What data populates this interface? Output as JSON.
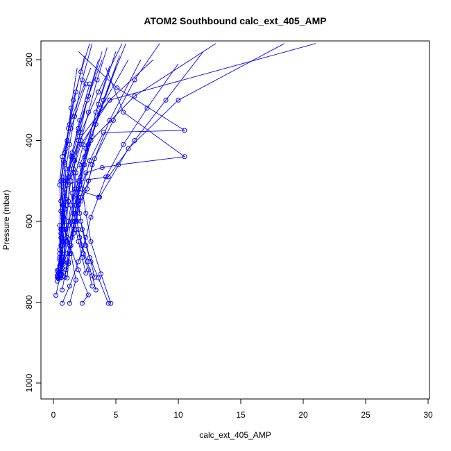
{
  "chart_data": {
    "type": "scatter",
    "title": "ATOM2 Southbound calc_ext_405_AMP",
    "xlabel": "calc_ext_405_AMP",
    "ylabel": "Pressure (mbar)",
    "xlim": [
      0,
      30
    ],
    "ylim": [
      1000,
      200
    ],
    "y_axis_inverted": true,
    "x_ticks": [
      0,
      5,
      10,
      15,
      20,
      25,
      30
    ],
    "y_ticks": [
      200,
      400,
      600,
      800,
      1000
    ],
    "grid": false,
    "legend": "none",
    "point_style": "open-circle",
    "color": "#0000ff",
    "series": [
      {
        "points": [
          [
            0.3,
            738
          ],
          [
            0.5,
            725
          ],
          [
            0.8,
            690
          ],
          [
            1.2,
            610
          ],
          [
            1.8,
            520
          ],
          [
            2.5,
            440
          ],
          [
            3.4,
            330
          ],
          [
            4.5,
            215
          ]
        ]
      },
      {
        "points": [
          [
            0.4,
            742
          ],
          [
            0.6,
            712
          ],
          [
            0.7,
            640
          ],
          [
            0.9,
            570
          ],
          [
            1.1,
            500
          ],
          [
            1.5,
            430
          ],
          [
            2.1,
            350
          ],
          [
            2.9,
            260
          ]
        ]
      },
      {
        "points": [
          [
            0.2,
            783
          ],
          [
            0.5,
            740
          ],
          [
            0.6,
            660
          ],
          [
            0.7,
            590
          ],
          [
            0.9,
            520
          ],
          [
            1.3,
            470
          ],
          [
            2.2,
            380
          ],
          [
            3.6,
            280
          ],
          [
            5.5,
            160
          ]
        ]
      },
      {
        "points": [
          [
            0.7,
            803
          ],
          [
            1.3,
            760
          ],
          [
            2.0,
            700
          ],
          [
            2.6,
            640
          ],
          [
            3.0,
            590
          ],
          [
            3.6,
            540
          ],
          [
            4.2,
            490
          ],
          [
            5.6,
            410
          ],
          [
            7.5,
            320
          ],
          [
            10.0,
            210
          ]
        ]
      },
      {
        "points": [
          [
            1.3,
            803
          ],
          [
            1.8,
            745
          ],
          [
            1.4,
            680
          ],
          [
            0.9,
            620
          ],
          [
            0.7,
            560
          ],
          [
            0.6,
            500
          ],
          [
            0.8,
            450
          ],
          [
            1.4,
            370
          ],
          [
            2.6,
            260
          ]
        ]
      },
      {
        "points": [
          [
            2.3,
            803
          ],
          [
            2.8,
            782
          ],
          [
            2.0,
            720
          ],
          [
            1.1,
            640
          ],
          [
            0.6,
            575
          ],
          [
            0.5,
            510
          ],
          [
            0.7,
            440
          ],
          [
            1.5,
            340
          ],
          [
            3.0,
            220
          ]
        ]
      },
      {
        "points": [
          [
            4.4,
            803
          ],
          [
            3.6,
            740
          ],
          [
            2.9,
            690
          ],
          [
            2.2,
            600
          ],
          [
            1.8,
            520
          ],
          [
            1.6,
            470
          ],
          [
            2.2,
            410
          ],
          [
            4.5,
            300
          ],
          [
            8.0,
            200
          ]
        ]
      },
      {
        "points": [
          [
            4.6,
            803
          ],
          [
            3.8,
            730
          ],
          [
            3.0,
            650
          ],
          [
            2.6,
            580
          ],
          [
            2.3,
            520
          ],
          [
            2.1,
            460
          ],
          [
            3.0,
            400
          ],
          [
            6.5,
            290
          ],
          [
            13.0,
            160
          ]
        ]
      },
      {
        "points": [
          [
            0.7,
            770
          ],
          [
            1.0,
            720
          ],
          [
            1.3,
            660
          ],
          [
            1.5,
            600
          ],
          [
            1.6,
            540
          ],
          [
            1.8,
            480
          ],
          [
            2.4,
            410
          ],
          [
            3.8,
            320
          ],
          [
            6.0,
            200
          ]
        ]
      },
      {
        "points": [
          [
            0.3,
            748
          ],
          [
            0.6,
            735
          ],
          [
            0.8,
            700
          ],
          [
            1.0,
            620
          ],
          [
            1.2,
            550
          ],
          [
            1.3,
            490
          ],
          [
            2.0,
            400
          ],
          [
            4.5,
            300
          ],
          [
            21.0,
            160
          ]
        ]
      },
      {
        "points": [
          [
            0.4,
            738
          ],
          [
            0.7,
            716
          ],
          [
            1.1,
            680
          ],
          [
            1.6,
            610
          ],
          [
            2.2,
            540
          ],
          [
            2.9,
            450
          ],
          [
            4.0,
            380
          ],
          [
            10.5,
            375
          ],
          [
            5.1,
            270
          ],
          [
            2.0,
            180
          ]
        ]
      },
      {
        "points": [
          [
            0.5,
            725
          ],
          [
            0.8,
            705
          ],
          [
            1.1,
            650
          ],
          [
            1.7,
            560
          ],
          [
            2.6,
            480
          ],
          [
            3.9,
            467
          ],
          [
            5.2,
            460
          ],
          [
            10.5,
            440
          ],
          [
            5.6,
            330
          ],
          [
            4.2,
            220
          ]
        ]
      },
      {
        "points": [
          [
            0.3,
            722
          ],
          [
            0.5,
            690
          ],
          [
            0.6,
            630
          ],
          [
            0.8,
            560
          ],
          [
            1.1,
            510
          ],
          [
            2.0,
            500
          ],
          [
            4.4,
            490
          ],
          [
            6.5,
            400
          ],
          [
            9.0,
            300
          ],
          [
            12.0,
            180
          ]
        ]
      },
      {
        "points": [
          [
            0.6,
            725
          ],
          [
            0.8,
            700
          ],
          [
            1.0,
            650
          ],
          [
            1.2,
            600
          ],
          [
            1.4,
            560
          ],
          [
            1.7,
            520
          ],
          [
            3.7,
            540
          ],
          [
            6.0,
            420
          ],
          [
            10.0,
            300
          ],
          [
            18.5,
            160
          ]
        ]
      },
      {
        "points": [
          [
            0.9,
            738
          ],
          [
            1.2,
            700
          ],
          [
            1.5,
            640
          ],
          [
            1.7,
            600
          ],
          [
            2.0,
            560
          ],
          [
            2.7,
            520
          ],
          [
            3.1,
            460
          ],
          [
            4.5,
            350
          ],
          [
            7.0,
            200
          ]
        ]
      },
      {
        "points": [
          [
            1.0,
            720
          ],
          [
            1.3,
            680
          ],
          [
            1.6,
            630
          ],
          [
            1.8,
            600
          ],
          [
            2.2,
            550
          ],
          [
            2.8,
            500
          ],
          [
            3.3,
            445
          ],
          [
            4.8,
            350
          ],
          [
            6.5,
            250
          ],
          [
            8.5,
            160
          ]
        ]
      },
      {
        "points": [
          [
            0.5,
            710
          ],
          [
            0.7,
            660
          ],
          [
            0.9,
            610
          ],
          [
            1.1,
            560
          ],
          [
            1.4,
            500
          ],
          [
            1.7,
            450
          ],
          [
            2.2,
            400
          ],
          [
            2.8,
            330
          ],
          [
            3.5,
            250
          ],
          [
            4.3,
            170
          ]
        ]
      },
      {
        "points": [
          [
            0.6,
            730
          ],
          [
            0.5,
            670
          ],
          [
            0.5,
            610
          ],
          [
            0.6,
            550
          ],
          [
            0.7,
            490
          ],
          [
            0.9,
            430
          ],
          [
            1.2,
            370
          ],
          [
            1.6,
            300
          ],
          [
            2.2,
            230
          ],
          [
            2.9,
            160
          ]
        ]
      },
      {
        "points": [
          [
            0.8,
            735
          ],
          [
            0.7,
            680
          ],
          [
            0.7,
            620
          ],
          [
            0.8,
            560
          ],
          [
            1.0,
            500
          ],
          [
            1.4,
            440
          ],
          [
            2.0,
            370
          ],
          [
            2.8,
            290
          ],
          [
            3.9,
            200
          ]
        ]
      },
      {
        "points": [
          [
            2.6,
            728
          ],
          [
            2.3,
            690
          ],
          [
            2.0,
            650
          ],
          [
            1.8,
            620
          ],
          [
            1.6,
            580
          ],
          [
            1.5,
            530
          ],
          [
            1.6,
            480
          ],
          [
            2.0,
            400
          ],
          [
            2.7,
            300
          ],
          [
            3.6,
            200
          ]
        ]
      },
      {
        "points": [
          [
            3.1,
            760
          ],
          [
            2.8,
            720
          ],
          [
            2.4,
            680
          ],
          [
            2.1,
            640
          ],
          [
            1.9,
            600
          ],
          [
            1.9,
            550
          ],
          [
            2.1,
            500
          ],
          [
            2.6,
            420
          ],
          [
            3.6,
            310
          ],
          [
            5.0,
            180
          ]
        ]
      },
      {
        "points": [
          [
            3.3,
            738
          ],
          [
            3.0,
            700
          ],
          [
            2.6,
            660
          ],
          [
            2.3,
            620
          ],
          [
            2.1,
            580
          ],
          [
            2.0,
            540
          ],
          [
            2.2,
            490
          ],
          [
            2.8,
            410
          ],
          [
            4.0,
            300
          ],
          [
            5.8,
            160
          ]
        ]
      },
      {
        "points": [
          [
            3.4,
            770
          ],
          [
            3.1,
            735
          ],
          [
            2.7,
            700
          ],
          [
            2.3,
            660
          ],
          [
            2.0,
            620
          ],
          [
            1.8,
            580
          ],
          [
            1.9,
            530
          ],
          [
            2.4,
            460
          ],
          [
            3.4,
            360
          ],
          [
            5.0,
            220
          ]
        ]
      },
      {
        "points": [
          [
            0.3,
            735
          ],
          [
            0.4,
            720
          ],
          [
            0.5,
            680
          ],
          [
            0.6,
            620
          ],
          [
            0.7,
            560
          ],
          [
            0.8,
            500
          ],
          [
            0.9,
            460
          ],
          [
            1.1,
            400
          ],
          [
            1.4,
            320
          ],
          [
            1.9,
            220
          ]
        ]
      },
      {
        "points": [
          [
            0.5,
            730
          ],
          [
            0.6,
            700
          ],
          [
            0.7,
            650
          ],
          [
            0.8,
            590
          ],
          [
            0.9,
            530
          ],
          [
            1.0,
            470
          ],
          [
            1.3,
            410
          ],
          [
            1.7,
            340
          ],
          [
            2.3,
            250
          ],
          [
            3.1,
            160
          ]
        ]
      },
      {
        "points": [
          [
            0.4,
            728
          ],
          [
            0.5,
            695
          ],
          [
            0.6,
            640
          ],
          [
            0.7,
            580
          ],
          [
            0.8,
            515
          ],
          [
            0.9,
            455
          ],
          [
            1.0,
            420
          ],
          [
            1.3,
            360
          ],
          [
            1.8,
            280
          ],
          [
            2.5,
            190
          ]
        ]
      },
      {
        "points": [
          [
            0.6,
            740
          ],
          [
            0.7,
            700
          ],
          [
            0.8,
            650
          ],
          [
            0.9,
            595
          ],
          [
            1.0,
            545
          ],
          [
            1.2,
            490
          ],
          [
            1.5,
            440
          ],
          [
            2.0,
            380
          ],
          [
            2.8,
            290
          ],
          [
            3.9,
            180
          ]
        ]
      },
      {
        "points": [
          [
            1.1,
            740
          ],
          [
            1.2,
            705
          ],
          [
            1.4,
            660
          ],
          [
            1.6,
            610
          ],
          [
            1.8,
            560
          ],
          [
            2.1,
            510
          ],
          [
            2.5,
            460
          ],
          [
            3.1,
            390
          ],
          [
            4.0,
            300
          ],
          [
            5.3,
            190
          ]
        ]
      }
    ]
  }
}
